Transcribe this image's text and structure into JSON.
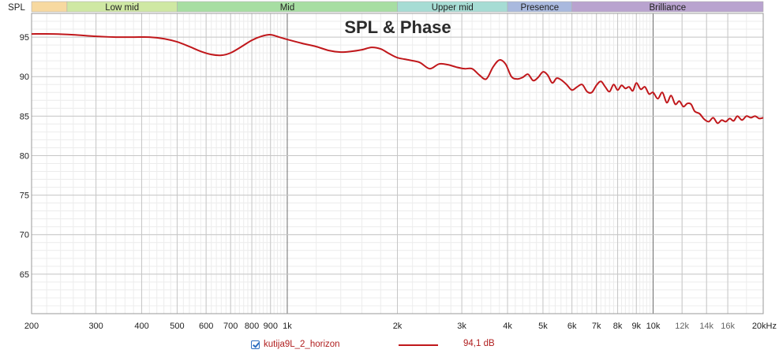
{
  "chart_data": {
    "type": "line",
    "title": "SPL & Phase",
    "ylabel": "SPL",
    "xscale": "log",
    "xlim": [
      200,
      20000
    ],
    "ylim": [
      60,
      98
    ],
    "grid": true,
    "x_ticks": [
      200,
      300,
      400,
      500,
      600,
      700,
      800,
      900,
      1000,
      2000,
      3000,
      4000,
      5000,
      6000,
      7000,
      8000,
      9000,
      10000,
      12000,
      14000,
      16000,
      20000
    ],
    "x_tick_labels": [
      "200",
      "300",
      "400",
      "500",
      "600",
      "700",
      "800",
      "900",
      "1k",
      "2k",
      "3k",
      "4k",
      "5k",
      "6k",
      "7k",
      "8k",
      "9k",
      "10k",
      "12k",
      "14k",
      "16k",
      "20kHz"
    ],
    "minor_x_ticks": [
      12000,
      14000,
      16000
    ],
    "y_ticks": [
      65,
      70,
      75,
      80,
      85,
      90,
      95
    ],
    "bands": [
      {
        "label": "",
        "from": 200,
        "to": 250,
        "color": "#f7d9a0"
      },
      {
        "label": "Low mid",
        "from": 250,
        "to": 500,
        "color": "#cfe8a3"
      },
      {
        "label": "Mid",
        "from": 500,
        "to": 2000,
        "color": "#a7dea2"
      },
      {
        "label": "Upper mid",
        "from": 2000,
        "to": 4000,
        "color": "#a6dcd4"
      },
      {
        "label": "Presence",
        "from": 4000,
        "to": 6000,
        "color": "#a9b9de"
      },
      {
        "label": "Brilliance",
        "from": 6000,
        "to": 20000,
        "color": "#b9a3cf"
      }
    ],
    "series": [
      {
        "name": "kutija9L_2_horizon",
        "color": "#c0171b",
        "x": [
          200,
          230,
          260,
          300,
          340,
          380,
          420,
          460,
          500,
          540,
          580,
          620,
          660,
          700,
          750,
          800,
          850,
          900,
          950,
          1000,
          1100,
          1200,
          1300,
          1400,
          1500,
          1600,
          1700,
          1800,
          1900,
          2000,
          2150,
          2300,
          2450,
          2600,
          2750,
          2900,
          3050,
          3200,
          3350,
          3500,
          3650,
          3800,
          3950,
          4100,
          4250,
          4400,
          4550,
          4700,
          4850,
          5000,
          5150,
          5300,
          5450,
          5600,
          5800,
          6000,
          6200,
          6400,
          6600,
          6800,
          7000,
          7200,
          7400,
          7600,
          7800,
          8000,
          8200,
          8400,
          8600,
          8800,
          9000,
          9250,
          9500,
          9750,
          10000,
          10300,
          10600,
          10900,
          11200,
          11500,
          11800,
          12100,
          12400,
          12700,
          13000,
          13400,
          13800,
          14200,
          14600,
          15000,
          15400,
          15800,
          16200,
          16600,
          17000,
          17500,
          18000,
          18500,
          19000,
          19500,
          20000
        ],
        "y": [
          95.4,
          95.4,
          95.3,
          95.1,
          95.0,
          95.0,
          95.0,
          94.8,
          94.4,
          93.8,
          93.2,
          92.8,
          92.7,
          93.0,
          93.8,
          94.6,
          95.1,
          95.3,
          95.0,
          94.7,
          94.2,
          93.8,
          93.3,
          93.1,
          93.2,
          93.4,
          93.7,
          93.5,
          92.9,
          92.4,
          92.1,
          91.8,
          91.0,
          91.6,
          91.5,
          91.2,
          91.0,
          91.0,
          90.2,
          89.7,
          91.2,
          92.1,
          91.6,
          90.0,
          89.7,
          89.9,
          90.3,
          89.5,
          89.9,
          90.6,
          90.2,
          89.2,
          89.8,
          89.6,
          89.0,
          88.3,
          88.7,
          89.0,
          88.1,
          88.0,
          88.9,
          89.4,
          88.7,
          88.1,
          89.0,
          88.3,
          88.9,
          88.5,
          88.7,
          88.2,
          89.2,
          88.4,
          88.7,
          87.8,
          88.0,
          87.2,
          88.0,
          86.7,
          87.6,
          86.5,
          86.9,
          86.2,
          86.6,
          86.5,
          85.6,
          85.3,
          84.6,
          84.3,
          84.8,
          84.1,
          84.5,
          84.3,
          84.7,
          84.4,
          85.0,
          84.5,
          85.0,
          84.8,
          85.0,
          84.7,
          84.8
        ]
      }
    ]
  },
  "legend": {
    "series_label": "kutija9L_2_horizon",
    "checked": true,
    "value_text": "94,1 dB"
  }
}
